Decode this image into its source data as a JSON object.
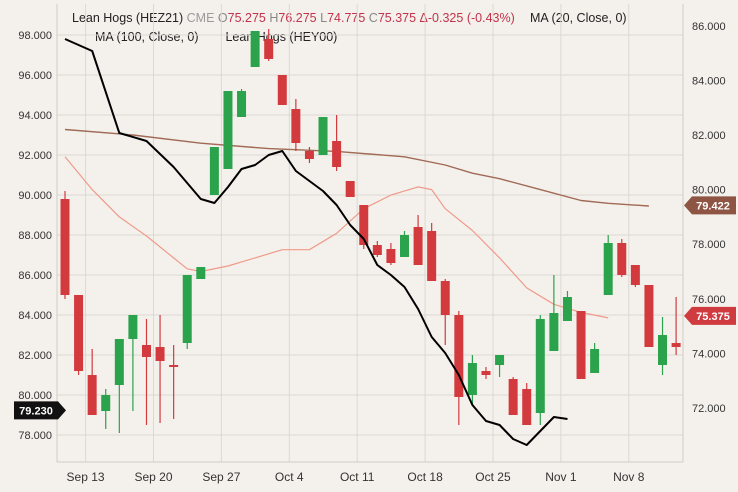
{
  "legend": {
    "symbol": "Lean Hogs (HEZ21)",
    "exchange": "CME",
    "o_label": "O",
    "o_value": "75.275",
    "h_label": "H",
    "h_value": "76.275",
    "l_label": "L",
    "l_value": "74.775",
    "c_label": "C",
    "c_value": "75.375",
    "change": "Δ-0.325 (-0.43%)",
    "ma20": "MA (20, Close, 0)",
    "ma100": "MA (100, Close, 0)",
    "compare": "Lean Hogs (HEY00)"
  },
  "colors": {
    "background": "#f4f1ec",
    "grid": "#dcd8d2",
    "up": "#2ba24c",
    "down": "#d23a3e",
    "ma20_line": "#000000",
    "ma100_line": "#a06a55",
    "compare_line": "#ef9a8a",
    "axis_text": "#333333",
    "badge_dark": "#111111",
    "badge_brown": "#8e5545",
    "badge_red": "#cf3b3f"
  },
  "chart_data": {
    "type": "candlestick",
    "x_ticks": [
      "Sep 13",
      "Sep 20",
      "Sep 27",
      "Oct 4",
      "Oct 11",
      "Oct 18",
      "Oct 25",
      "Nov 1",
      "Nov 8"
    ],
    "left_axis": {
      "ticks": [
        "98.000",
        "96.000",
        "94.000",
        "92.000",
        "90.000",
        "88.000",
        "86.000",
        "84.000",
        "82.000",
        "80.000",
        "78.000"
      ],
      "range": [
        77.0,
        99.5
      ]
    },
    "right_axis": {
      "ticks": [
        "86.000",
        "84.000",
        "82.000",
        "80.000",
        "78.000",
        "76.000",
        "74.000",
        "72.000"
      ],
      "range": [
        70.8,
        86.9
      ]
    },
    "grid": true,
    "candles": [
      {
        "date": "Sep 10",
        "o": 89.8,
        "h": 90.2,
        "l": 84.8,
        "c": 85.0
      },
      {
        "date": "Sep 13",
        "o": 85.0,
        "h": 85.0,
        "l": 81.0,
        "c": 81.2
      },
      {
        "date": "Sep 14",
        "o": 81.0,
        "h": 82.3,
        "l": 79.0,
        "c": 79.0
      },
      {
        "date": "Sep 15",
        "o": 79.2,
        "h": 80.3,
        "l": 78.3,
        "c": 80.0
      },
      {
        "date": "Sep 16",
        "o": 80.5,
        "h": 82.8,
        "l": 78.1,
        "c": 82.8
      },
      {
        "date": "Sep 17",
        "o": 82.8,
        "h": 84.0,
        "l": 79.2,
        "c": 84.0
      },
      {
        "date": "Sep 20",
        "o": 82.5,
        "h": 83.8,
        "l": 78.5,
        "c": 81.9
      },
      {
        "date": "Sep 21",
        "o": 82.4,
        "h": 84.0,
        "l": 78.6,
        "c": 81.7
      },
      {
        "date": "Sep 22",
        "o": 81.5,
        "h": 82.5,
        "l": 78.8,
        "c": 81.4
      },
      {
        "date": "Sep 23",
        "o": 82.6,
        "h": 86.0,
        "l": 82.3,
        "c": 86.0
      },
      {
        "date": "Sep 24",
        "o": 85.8,
        "h": 86.4,
        "l": 85.8,
        "c": 86.4
      },
      {
        "date": "Sep 27",
        "o": 90.0,
        "h": 92.4,
        "l": 90.0,
        "c": 92.4
      },
      {
        "date": "Sep 28",
        "o": 91.3,
        "h": 95.2,
        "l": 91.3,
        "c": 95.2
      },
      {
        "date": "Sep 29",
        "o": 93.9,
        "h": 95.3,
        "l": 93.9,
        "c": 95.2
      },
      {
        "date": "Sep 30",
        "o": 96.4,
        "h": 98.2,
        "l": 96.4,
        "c": 98.2
      },
      {
        "date": "Oct 1",
        "o": 97.8,
        "h": 98.3,
        "l": 96.7,
        "c": 96.8
      },
      {
        "date": "Oct 4",
        "o": 96.0,
        "h": 96.0,
        "l": 94.5,
        "c": 94.5
      },
      {
        "date": "Oct 5",
        "o": 94.3,
        "h": 94.8,
        "l": 92.2,
        "c": 92.6
      },
      {
        "date": "Oct 6",
        "o": 92.2,
        "h": 92.4,
        "l": 91.6,
        "c": 91.8
      },
      {
        "date": "Oct 7",
        "o": 92.0,
        "h": 93.9,
        "l": 92.0,
        "c": 93.9
      },
      {
        "date": "Oct 8",
        "o": 92.7,
        "h": 94.0,
        "l": 91.2,
        "c": 91.4
      },
      {
        "date": "Oct 11",
        "o": 90.7,
        "h": 90.7,
        "l": 89.9,
        "c": 89.9
      },
      {
        "date": "Oct 12",
        "o": 89.5,
        "h": 89.5,
        "l": 87.3,
        "c": 87.5
      },
      {
        "date": "Oct 13",
        "o": 87.5,
        "h": 87.7,
        "l": 86.9,
        "c": 87.0
      },
      {
        "date": "Oct 14",
        "o": 87.3,
        "h": 87.6,
        "l": 86.5,
        "c": 86.6
      },
      {
        "date": "Oct 15",
        "o": 86.9,
        "h": 88.2,
        "l": 86.9,
        "c": 88.0
      },
      {
        "date": "Oct 18",
        "o": 88.4,
        "h": 89.0,
        "l": 86.5,
        "c": 86.5
      },
      {
        "date": "Oct 19",
        "o": 88.2,
        "h": 88.6,
        "l": 85.7,
        "c": 85.7
      },
      {
        "date": "Oct 20",
        "o": 85.7,
        "h": 85.8,
        "l": 82.5,
        "c": 84.0
      },
      {
        "date": "Oct 21",
        "o": 84.0,
        "h": 84.2,
        "l": 78.5,
        "c": 79.9
      },
      {
        "date": "Oct 22",
        "o": 80.0,
        "h": 82.0,
        "l": 79.5,
        "c": 81.6
      },
      {
        "date": "Oct 25",
        "o": 81.2,
        "h": 81.4,
        "l": 80.8,
        "c": 81.0
      },
      {
        "date": "Oct 26",
        "o": 81.5,
        "h": 82.0,
        "l": 80.9,
        "c": 82.0
      },
      {
        "date": "Oct 27",
        "o": 80.8,
        "h": 80.9,
        "l": 79.0,
        "c": 79.0
      },
      {
        "date": "Oct 28",
        "o": 80.3,
        "h": 80.6,
        "l": 78.5,
        "c": 78.5
      },
      {
        "date": "Oct 29",
        "o": 79.1,
        "h": 84.0,
        "l": 78.5,
        "c": 83.8
      },
      {
        "date": "Nov 1",
        "o": 82.2,
        "h": 86.0,
        "l": 82.2,
        "c": 84.1
      },
      {
        "date": "Nov 2",
        "o": 83.7,
        "h": 85.2,
        "l": 83.7,
        "c": 84.9
      },
      {
        "date": "Nov 3",
        "o": 84.2,
        "h": 84.2,
        "l": 80.8,
        "c": 80.8
      },
      {
        "date": "Nov 4",
        "o": 81.1,
        "h": 82.6,
        "l": 81.1,
        "c": 82.3
      },
      {
        "date": "Nov 5",
        "o": 85.0,
        "h": 88.0,
        "l": 85.0,
        "c": 87.6
      },
      {
        "date": "Nov 8",
        "o": 87.6,
        "h": 87.8,
        "l": 85.9,
        "c": 86.0
      },
      {
        "date": "Nov 9",
        "o": 86.5,
        "h": 86.5,
        "l": 85.4,
        "c": 85.5
      },
      {
        "date": "Nov 10",
        "o": 85.5,
        "h": 85.5,
        "l": 82.4,
        "c": 82.4
      },
      {
        "date": "Nov 11",
        "o": 81.5,
        "h": 83.9,
        "l": 81.0,
        "c": 83.0
      },
      {
        "date": "Nov 12",
        "o": 82.6,
        "h": 84.9,
        "l": 82.0,
        "c": 82.4
      }
    ],
    "series": [
      {
        "name": "MA (20, Close, 0)",
        "axis": "left",
        "style": "black",
        "points": [
          [
            0,
            97.8
          ],
          [
            2,
            97.2
          ],
          [
            4,
            93.1
          ],
          [
            6,
            92.7
          ],
          [
            8,
            91.4
          ],
          [
            10,
            89.8
          ],
          [
            11,
            89.6
          ],
          [
            12,
            90.4
          ],
          [
            13,
            91.3
          ],
          [
            14,
            91.5
          ],
          [
            15,
            92.0
          ],
          [
            16,
            92.2
          ],
          [
            17,
            91.2
          ],
          [
            19,
            90.2
          ],
          [
            20,
            89.5
          ],
          [
            21,
            88.5
          ],
          [
            22,
            87.8
          ],
          [
            23,
            86.5
          ],
          [
            24,
            86.0
          ],
          [
            25,
            85.4
          ],
          [
            26,
            84.3
          ],
          [
            27,
            82.9
          ],
          [
            28,
            82.1
          ],
          [
            29,
            81.0
          ],
          [
            30,
            79.5
          ],
          [
            31,
            78.7
          ],
          [
            32,
            78.5
          ],
          [
            33,
            77.8
          ],
          [
            34,
            77.5
          ],
          [
            36,
            78.9
          ],
          [
            37,
            78.8
          ]
        ]
      },
      {
        "name": "MA (100, Close, 0)",
        "axis": "right",
        "style": "brown",
        "points": [
          [
            0,
            82.2
          ],
          [
            5,
            82.0
          ],
          [
            10,
            81.7
          ],
          [
            15,
            81.5
          ],
          [
            20,
            81.4
          ],
          [
            25,
            81.2
          ],
          [
            28,
            80.9
          ],
          [
            30,
            80.6
          ],
          [
            32,
            80.4
          ],
          [
            35,
            80.0
          ],
          [
            38,
            79.6
          ],
          [
            40,
            79.5
          ],
          [
            43,
            79.4
          ]
        ]
      },
      {
        "name": "Lean Hogs (HEY00)",
        "axis": "right",
        "style": "salmon",
        "points": [
          [
            0,
            81.2
          ],
          [
            2,
            80.0
          ],
          [
            4,
            79.0
          ],
          [
            6,
            78.3
          ],
          [
            8,
            77.5
          ],
          [
            9,
            77.1
          ],
          [
            10,
            77.0
          ],
          [
            12,
            77.2
          ],
          [
            14,
            77.5
          ],
          [
            16,
            77.8
          ],
          [
            18,
            77.8
          ],
          [
            20,
            78.4
          ],
          [
            22,
            79.3
          ],
          [
            24,
            79.8
          ],
          [
            26,
            80.1
          ],
          [
            27,
            80.0
          ],
          [
            28,
            79.3
          ],
          [
            30,
            78.5
          ],
          [
            32,
            77.5
          ],
          [
            34,
            76.4
          ],
          [
            36,
            75.8
          ],
          [
            38,
            75.5
          ],
          [
            40,
            75.3
          ]
        ]
      }
    ],
    "price_labels": {
      "left_last": "79.230",
      "right_ma100": "79.422",
      "right_close": "75.375"
    }
  }
}
